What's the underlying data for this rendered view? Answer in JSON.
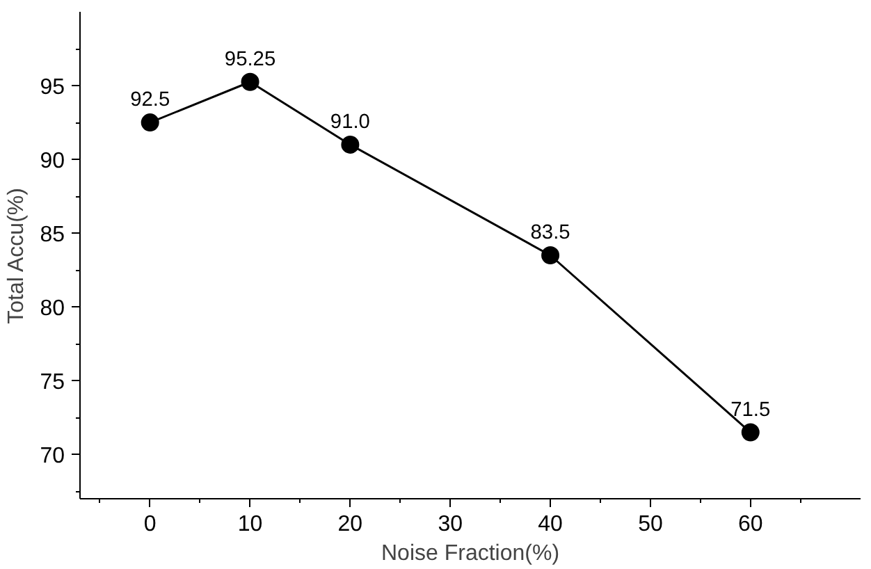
{
  "chart_data": {
    "type": "line",
    "xlabel": "Noise Fraction(%)",
    "ylabel": "Total Accu(%)",
    "x": [
      0,
      10,
      20,
      40,
      60
    ],
    "series": [
      {
        "color": "#000000",
        "values": [
          92.5,
          95.25,
          91.0,
          83.5,
          71.5
        ],
        "value_labels": [
          "92.5",
          "95.25",
          "91.0",
          "83.5",
          "71.5"
        ]
      }
    ],
    "xlim": [
      -7,
      71
    ],
    "ylim": [
      67,
      100
    ],
    "xticks": [
      0,
      10,
      20,
      30,
      40,
      50,
      60
    ],
    "yticks": [
      70,
      75,
      80,
      85,
      90,
      95
    ],
    "marker": "circle",
    "line_style": "solid"
  }
}
